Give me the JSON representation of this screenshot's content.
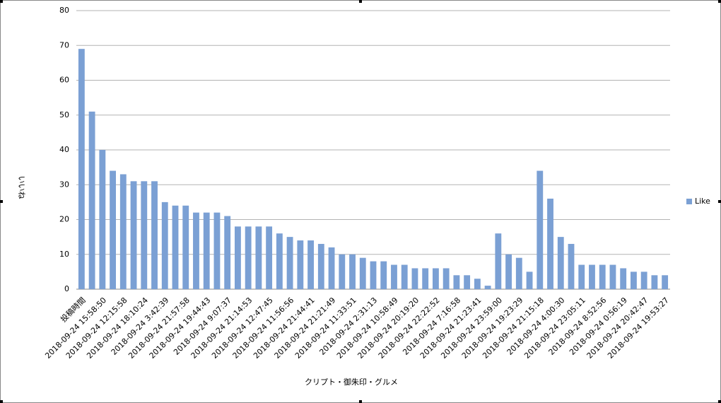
{
  "chart_data": {
    "type": "bar",
    "x_label": "クリプト・御朱印・グルメ",
    "y_label": "いいね",
    "categories": [
      "投稿時間",
      null,
      "2018-09-24 15:58:50",
      null,
      "2018-09-24 12:15:58",
      null,
      "2018-09-24 18:10:24",
      null,
      "2018-09-24 3:42:39",
      null,
      "2018-09-24 21:57:58",
      null,
      "2018-09-24 19:44:43",
      null,
      "2018-09-24 9:07:37",
      null,
      "2018-09-24 21:14:53",
      null,
      "2018-09-24 12:47:45",
      null,
      "2018-09-24 11:56:56",
      null,
      "2018-09-24 21:44:41",
      null,
      "2018-09-24 21:21:49",
      null,
      "2018-09-24 11:33:51",
      null,
      "2018-09-24 2:31:13",
      null,
      "2018-09-24 10:58:49",
      null,
      "2018-09-24 20:19:20",
      null,
      "2018-09-24 22:22:52",
      null,
      "2018-09-24 7:16:58",
      null,
      "2018-09-24 21:23:41",
      null,
      "2018-09-24 23:59:00",
      null,
      "2018-09-24 19:23:29",
      null,
      "2018-09-24 21:15:18",
      null,
      "2018-09-24 4:00:30",
      null,
      "2018-09-24 23:05:11",
      null,
      "2018-09-24 8:52:56",
      null,
      "2018-09-24 0:56:19",
      null,
      "2018-09-24 20:42:47",
      null,
      "2018-09-24 19:53:27"
    ],
    "series": [
      {
        "name": "Like",
        "color": "#7ba0d4",
        "values": [
          69,
          51,
          40,
          34,
          33,
          31,
          31,
          31,
          25,
          24,
          24,
          22,
          22,
          22,
          21,
          18,
          18,
          18,
          18,
          16,
          15,
          14,
          14,
          13,
          12,
          10,
          10,
          9,
          8,
          8,
          7,
          7,
          6,
          6,
          6,
          6,
          4,
          4,
          3,
          1,
          16,
          10,
          9,
          5,
          34,
          26,
          15,
          13,
          7,
          7,
          7,
          7,
          6,
          5,
          5,
          4,
          4
        ]
      }
    ],
    "ylim": [
      0,
      80
    ],
    "yticks": [
      0,
      10,
      20,
      30,
      40,
      50,
      60,
      70,
      80
    ],
    "grid": true,
    "legend": "right"
  }
}
